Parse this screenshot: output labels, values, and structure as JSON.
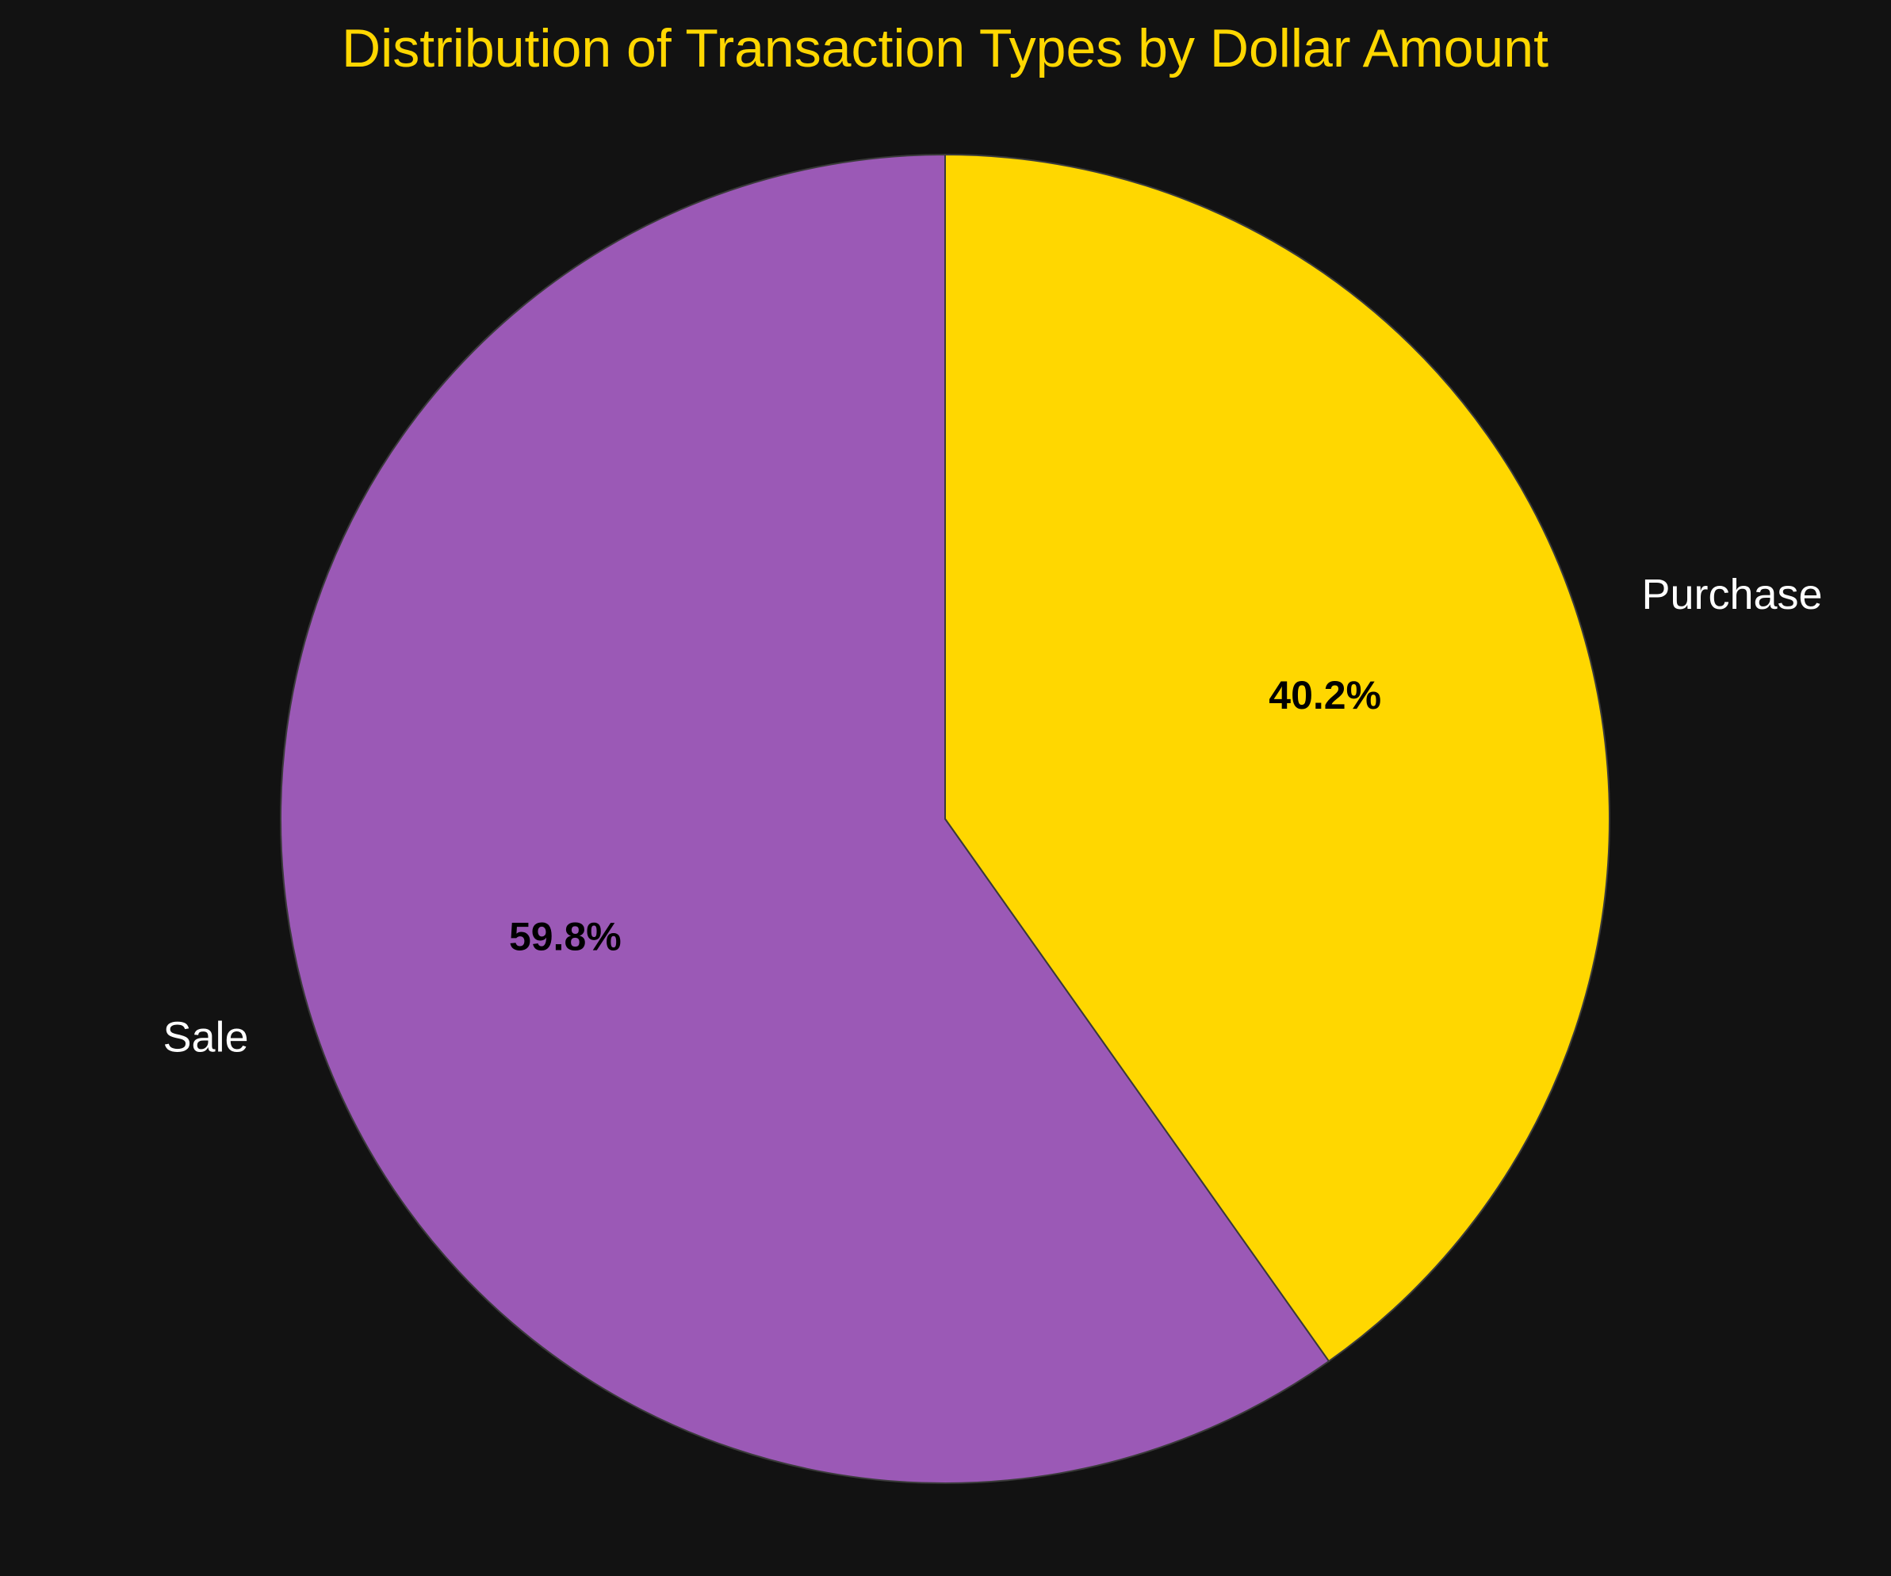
{
  "chart_data": {
    "type": "pie",
    "title": "Distribution of Transaction Types by Dollar Amount",
    "start_angle_deg": 90,
    "direction": "clockwise",
    "slices": [
      {
        "label": "Purchase",
        "value": 40.2,
        "pct_label": "40.2%",
        "color": "#FFD700"
      },
      {
        "label": "Sale",
        "value": 59.8,
        "pct_label": "59.8%",
        "color": "#9B59B6"
      }
    ],
    "colors": {
      "background": "#121212",
      "title": "#FFD700",
      "slice_label": "#FFFFFF",
      "pct_label": "#000000",
      "edge": "#3a3a3a"
    }
  }
}
